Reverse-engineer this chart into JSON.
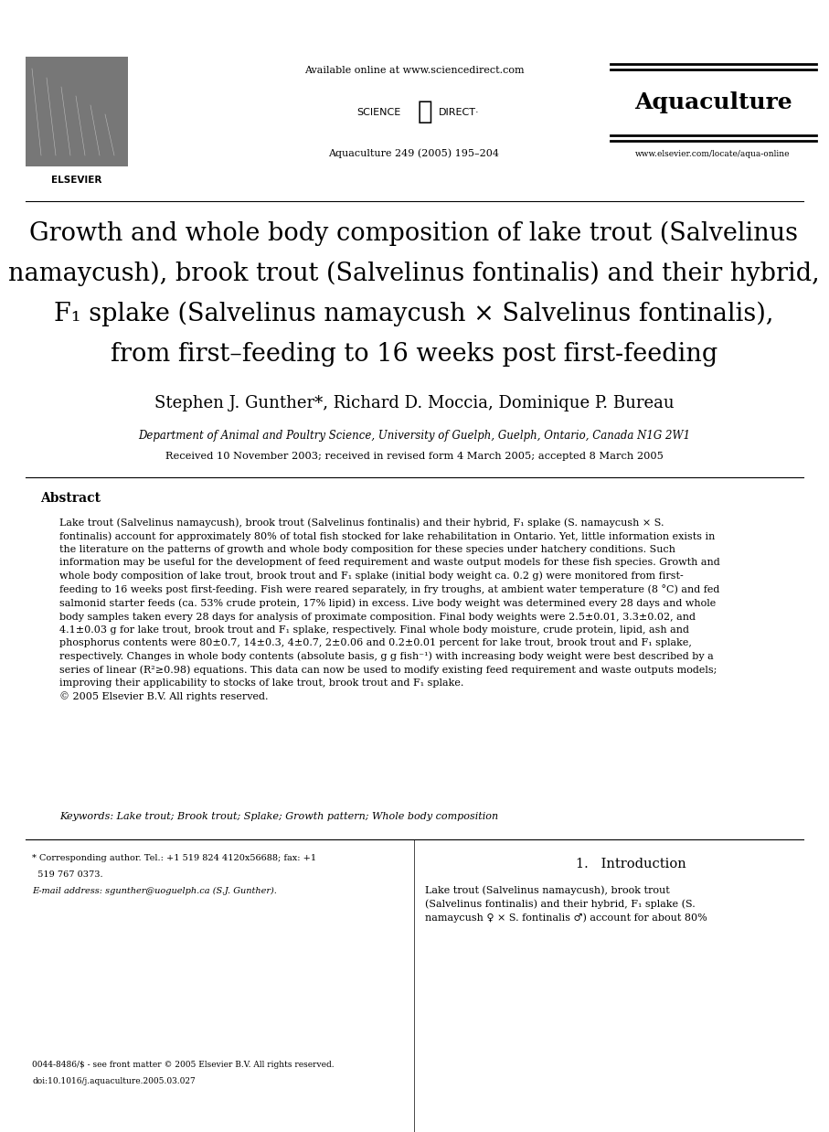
{
  "bg_color": "#ffffff",
  "page_width": 9.07,
  "page_height": 12.38,
  "available_online": "Available online at www.sciencedirect.com",
  "journal_info": "Aquaculture 249 (2005) 195–204",
  "journal_name": "Aquaculture",
  "website": "www.elsevier.com/locate/aqua-online",
  "title_line1": "Growth and whole body composition of lake trout (Salvelinus",
  "title_line2": "namaycush), brook trout (Salvelinus fontinalis) and their hybrid,",
  "title_line3": "F₁ splake (Salvelinus namaycush × Salvelinus fontinalis),",
  "title_line4": "from first–feeding to 16 weeks post first-feeding",
  "authors": "Stephen J. Gunther*, Richard D. Moccia, Dominique P. Bureau",
  "affiliation": "Department of Animal and Poultry Science, University of Guelph, Guelph, Ontario, Canada N1G 2W1",
  "received": "Received 10 November 2003; received in revised form 4 March 2005; accepted 8 March 2005",
  "abstract_title": "Abstract",
  "abstract_para": "Lake trout (Salvelinus namaycush), brook trout (Salvelinus fontinalis) and their hybrid, F₁ splake (S. namaycush × S.\nfontinalis) account for approximately 80% of total fish stocked for lake rehabilitation in Ontario. Yet, little information exists in\nthe literature on the patterns of growth and whole body composition for these species under hatchery conditions. Such\ninformation may be useful for the development of feed requirement and waste output models for these fish species. Growth and\nwhole body composition of lake trout, brook trout and F₁ splake (initial body weight ca. 0.2 g) were monitored from first-\nfeeding to 16 weeks post first-feeding. Fish were reared separately, in fry troughs, at ambient water temperature (8 °C) and fed\nsalmonid starter feeds (ca. 53% crude protein, 17% lipid) in excess. Live body weight was determined every 28 days and whole\nbody samples taken every 28 days for analysis of proximate composition. Final body weights were 2.5±0.01, 3.3±0.02, and\n4.1±0.03 g for lake trout, brook trout and F₁ splake, respectively. Final whole body moisture, crude protein, lipid, ash and\nphosphorus contents were 80±0.7, 14±0.3, 4±0.7, 2±0.06 and 0.2±0.01 percent for lake trout, brook trout and F₁ splake,\nrespectively. Changes in whole body contents (absolute basis, g g fish⁻¹) with increasing body weight were best described by a\nseries of linear (R²≥0.98) equations. This data can now be used to modify existing feed requirement and waste outputs models;\nimproving their applicability to stocks of lake trout, brook trout and F₁ splake.\n© 2005 Elsevier B.V. All rights reserved.",
  "keywords_line": "Keywords: Lake trout; Brook trout; Splake; Growth pattern; Whole body composition",
  "intro_header": "1.   Introduction",
  "intro_text": "Lake trout (Salvelinus namaycush), brook trout\n(Salvelinus fontinalis) and their hybrid, F₁ splake (S.\nnamaycush ♀ × S. fontinalis ♂) account for about 80%",
  "footnote1a": "* Corresponding author. Tel.: +1 519 824 4120x56688; fax: +1",
  "footnote1b": "  519 767 0373.",
  "footnote2": "E-mail address: sgunther@uoguelph.ca (S.J. Gunther).",
  "footer_issn": "0044-8486/$ - see front matter © 2005 Elsevier B.V. All rights reserved.",
  "footer_doi": "doi:10.1016/j.aquaculture.2005.03.027"
}
